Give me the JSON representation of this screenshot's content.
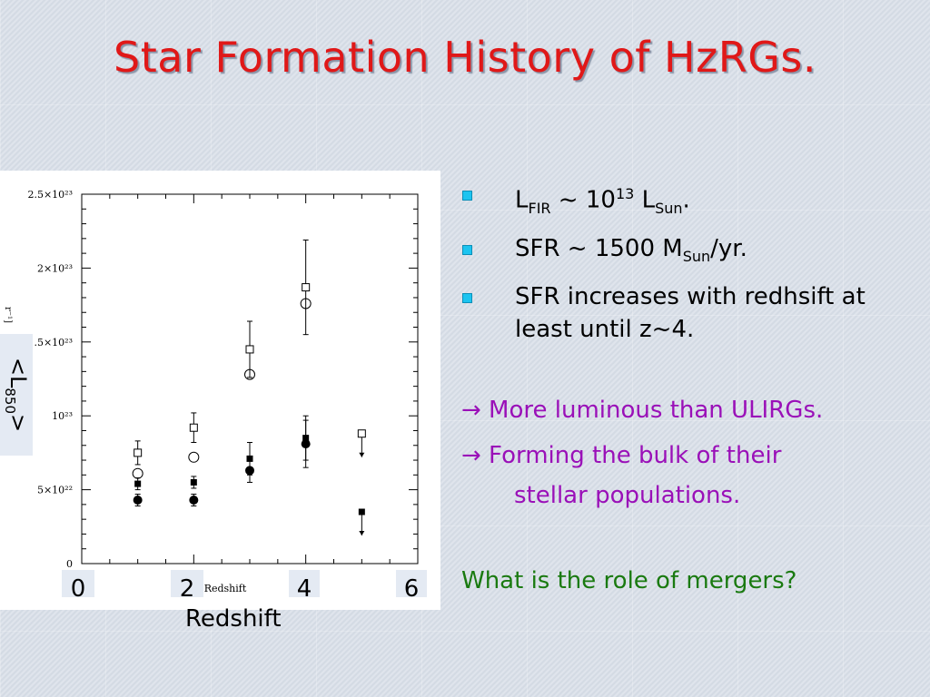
{
  "slide": {
    "title": "Star Formation History of HzRGs."
  },
  "figure": {
    "y_tick_labels": [
      "2.5×10²³",
      "2×10²³",
      "1.5×10²³",
      "10²³",
      "5×10²²",
      "0"
    ],
    "inner_xlabel": "Redshift",
    "cropped_ylabel_fragment": "r⁻¹]",
    "overlay_ylabel_prefix": "<L",
    "overlay_ylabel_sub": "850",
    "overlay_ylabel_suffix": ">",
    "overlay_xticks": [
      "0",
      "2",
      "4",
      "6"
    ],
    "overlay_xlabel": "Redshift"
  },
  "chart_data": {
    "type": "scatter",
    "title": "",
    "xlabel": "Redshift",
    "ylabel": "<L850>",
    "xlim": [
      0,
      6
    ],
    "ylim": [
      0,
      2.5e+23
    ],
    "y_ticks": [
      0,
      5e+22,
      1e+23,
      1.5e+23,
      2e+23,
      2.5e+23
    ],
    "x_ticks": [
      0,
      2,
      4,
      6
    ],
    "grid": false,
    "series": [
      {
        "marker": "open-square",
        "points": [
          {
            "x": 1,
            "y": 7.5e+22,
            "err": 8e+21
          },
          {
            "x": 2,
            "y": 9.2e+22,
            "err": 1e+22
          },
          {
            "x": 3,
            "y": 1.45e+23,
            "err": 1.9e+22
          },
          {
            "x": 4,
            "y": 1.87e+23,
            "err": 3.2e+22
          },
          {
            "x": 5,
            "y": 8.8e+22,
            "upper_limit": true
          }
        ]
      },
      {
        "marker": "open-circle",
        "points": [
          {
            "x": 1,
            "y": 6.1e+22
          },
          {
            "x": 2,
            "y": 7.2e+22
          },
          {
            "x": 3,
            "y": 1.28e+23
          },
          {
            "x": 4,
            "y": 1.76e+23
          }
        ]
      },
      {
        "marker": "filled-square",
        "points": [
          {
            "x": 1,
            "y": 5.4e+22,
            "err": 4e+21
          },
          {
            "x": 2,
            "y": 5.5e+22,
            "err": 4e+21
          },
          {
            "x": 3,
            "y": 7.1e+22,
            "err": 1.1e+22
          },
          {
            "x": 4,
            "y": 8.5e+22,
            "err": 1.5e+22
          },
          {
            "x": 5,
            "y": 3.5e+22,
            "upper_limit": true
          }
        ]
      },
      {
        "marker": "filled-circle",
        "points": [
          {
            "x": 1,
            "y": 4.3e+22,
            "err": 4e+21
          },
          {
            "x": 2,
            "y": 4.3e+22,
            "err": 4e+21
          },
          {
            "x": 3,
            "y": 6.3e+22,
            "err": 8e+21
          },
          {
            "x": 4,
            "y": 8.1e+22,
            "err": 1.6e+22
          }
        ]
      }
    ]
  },
  "bullets": {
    "b1": {
      "pre": "L",
      "sub1": "FIR",
      "mid": " ~ 10",
      "sup": "13",
      "mid2": " L",
      "sub2": "Sun",
      "post": "."
    },
    "b2": {
      "pre": "SFR ~ 1500 M",
      "sub": "Sun",
      "post": "/yr."
    },
    "b3": {
      "text": "SFR increases with redhsift at least until z~4."
    }
  },
  "arrows": {
    "line1": "→ More luminous than ULIRGs.",
    "line2a": "→ Forming the bulk of their",
    "line2b": "stellar populations."
  },
  "question": "What is the role of mergers?",
  "colors": {
    "title": "#e01818",
    "arrow_text": "#9a10b8",
    "question_text": "#1a7a10",
    "bullet_marker": "#1cc4f0"
  }
}
